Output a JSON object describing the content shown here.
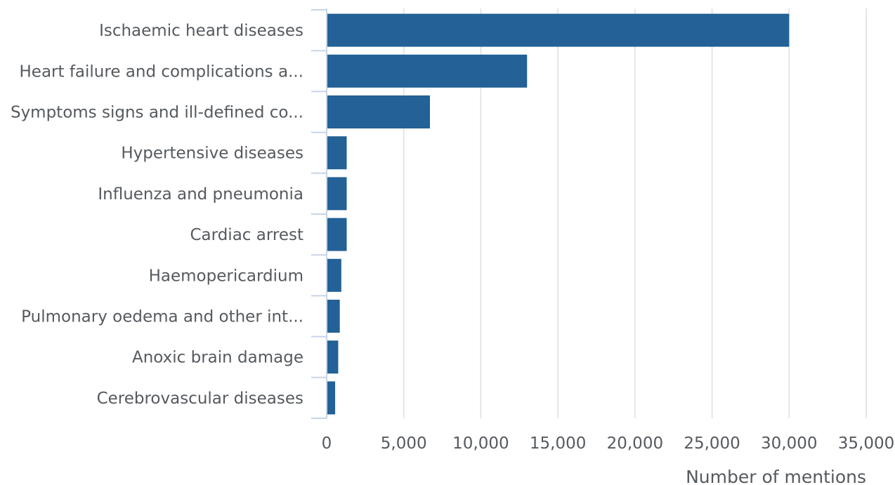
{
  "chart_data": {
    "type": "bar",
    "orientation": "horizontal",
    "title": "",
    "xlabel": "Number of mentions",
    "ylabel": "",
    "categories": [
      "Ischaemic heart diseases",
      "Heart failure and complications a...",
      "Symptoms signs and ill-defined co...",
      "Hypertensive diseases",
      "Influenza and pneumonia",
      "Cardiac arrest",
      "Haemopericardium",
      "Pulmonary oedema and other int...",
      "Anoxic brain damage",
      "Cerebrovascular diseases"
    ],
    "values": [
      30000,
      13000,
      6700,
      1300,
      1300,
      1300,
      950,
      850,
      750,
      550
    ],
    "xlim": [
      0,
      35000
    ],
    "xticks": [
      0,
      5000,
      10000,
      15000,
      20000,
      25000,
      30000,
      35000
    ],
    "xtick_labels": [
      "0",
      "5,000",
      "10,000",
      "15,000",
      "20,000",
      "25,000",
      "30,000",
      "35,000"
    ],
    "grid": true,
    "legend": "none",
    "colors": {
      "bar": "#236196",
      "grid": "#e3e6ea",
      "axis": "#c9d4e6",
      "text": "#555a5f"
    }
  }
}
